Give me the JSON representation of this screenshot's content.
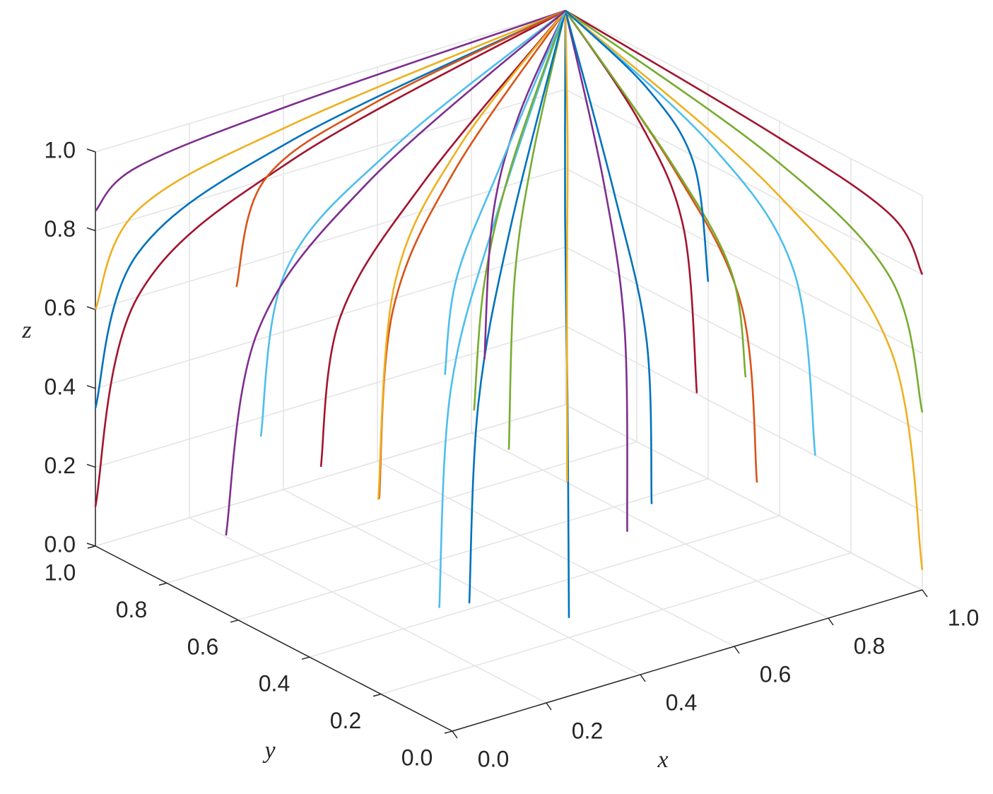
{
  "chart_data": {
    "type": "line3d",
    "xlabel": "x",
    "ylabel": "y",
    "zlabel": "z",
    "xlim": [
      0,
      1
    ],
    "ylim": [
      0,
      1
    ],
    "zlim": [
      0,
      1
    ],
    "xticks": [
      {
        "value": 0,
        "label": "0.0"
      },
      0.2,
      0.4,
      0.6,
      0.8,
      {
        "value": 1,
        "label": "1.0"
      }
    ],
    "yticks": [
      {
        "value": 0,
        "label": "0.0"
      },
      0.2,
      0.4,
      0.6,
      0.8,
      {
        "value": 1,
        "label": "1.0"
      }
    ],
    "zticks": [
      {
        "value": 0,
        "label": "0.0"
      },
      0.2,
      0.4,
      0.6,
      0.8,
      {
        "value": 1,
        "label": "1.0"
      }
    ],
    "grid": true,
    "series": [
      {
        "color": "#7E2F8E",
        "x": [
          0,
          0.09,
          0.42,
          1
        ],
        "y": [
          1,
          1,
          1,
          1
        ],
        "z": [
          0.85,
          0.93,
          0.97,
          1
        ]
      },
      {
        "color": "#EDB120",
        "x": [
          0,
          0.09,
          0.42,
          1
        ],
        "y": [
          1,
          1,
          1,
          1
        ],
        "z": [
          0.6,
          0.82,
          0.92,
          1
        ]
      },
      {
        "color": "#0072BD",
        "x": [
          0,
          0.09,
          0.42,
          1
        ],
        "y": [
          1,
          1,
          1,
          1
        ],
        "z": [
          0.35,
          0.71,
          0.88,
          1
        ]
      },
      {
        "color": "#A2142F",
        "x": [
          0,
          0.09,
          0.42,
          1
        ],
        "y": [
          1,
          1,
          1,
          1
        ],
        "z": [
          0.1,
          0.6,
          0.83,
          1
        ]
      },
      {
        "color": "#A2142F",
        "x": [
          1,
          1,
          1,
          1
        ],
        "y": [
          0,
          0.09,
          0.42,
          1
        ],
        "z": [
          0.8,
          0.91,
          0.96,
          1
        ]
      },
      {
        "color": "#77AC30",
        "x": [
          1,
          1,
          1,
          1
        ],
        "y": [
          0,
          0.09,
          0.42,
          1
        ],
        "z": [
          0.45,
          0.75,
          0.9,
          1
        ]
      },
      {
        "color": "#EDB120",
        "x": [
          1,
          1,
          1,
          1
        ],
        "y": [
          0,
          0.09,
          0.42,
          1
        ],
        "z": [
          0.05,
          0.57,
          0.82,
          1
        ]
      },
      {
        "color": "#4DBEEE",
        "x": [
          1,
          1,
          1,
          1
        ],
        "y": [
          0.3,
          0.36,
          0.59,
          1
        ],
        "z": [
          0.2,
          0.64,
          0.85,
          1
        ]
      },
      {
        "color": "#D95319",
        "x": [
          0.3,
          0.36,
          0.59,
          1
        ],
        "y": [
          1,
          1,
          1,
          1
        ],
        "z": [
          0.55,
          0.8,
          0.91,
          1
        ]
      },
      {
        "color": "#4DBEEE",
        "x": [
          0.2,
          0.27,
          0.54,
          1
        ],
        "y": [
          0.3,
          0.36,
          0.59,
          1
        ],
        "z": [
          0.1,
          0.6,
          0.83,
          1
        ]
      },
      {
        "color": "#0072BD",
        "x": [
          0.4,
          0.45,
          0.65,
          1
        ],
        "y": [
          0.2,
          0.27,
          0.54,
          1
        ],
        "z": [
          0.05,
          0.57,
          0.82,
          1
        ]
      },
      {
        "color": "#77AC30",
        "x": [
          0.5,
          0.55,
          0.71,
          1
        ],
        "y": [
          0.5,
          0.55,
          0.71,
          1
        ],
        "z": [
          0.3,
          0.69,
          0.87,
          1
        ]
      },
      {
        "color": "#D95319",
        "x": [
          0.3,
          0.36,
          0.59,
          1
        ],
        "y": [
          0.6,
          0.64,
          0.77,
          1
        ],
        "z": [
          0.2,
          0.64,
          0.85,
          1
        ]
      },
      {
        "color": "#7E2F8E",
        "x": [
          0.6,
          0.64,
          0.77,
          1
        ],
        "y": [
          0.3,
          0.36,
          0.59,
          1
        ],
        "z": [
          0.15,
          0.62,
          0.84,
          1
        ]
      },
      {
        "color": "#A2142F",
        "x": [
          0.1,
          0.18,
          0.48,
          1
        ],
        "y": [
          0.5,
          0.55,
          0.71,
          1
        ],
        "z": [
          0.4,
          0.73,
          0.89,
          1
        ]
      },
      {
        "color": "#EDB120",
        "x": [
          0.7,
          0.73,
          0.83,
          1
        ],
        "y": [
          0.6,
          0.64,
          0.77,
          1
        ],
        "z": [
          0.1,
          0.6,
          0.83,
          1
        ]
      },
      {
        "color": "#4DBEEE",
        "x": [
          0.2,
          0.27,
          0.54,
          1
        ],
        "y": [
          0.8,
          0.82,
          0.88,
          1
        ],
        "z": [
          0.3,
          0.69,
          0.87,
          1
        ]
      },
      {
        "color": "#0072BD",
        "x": [
          0.5,
          0.55,
          0.71,
          1
        ],
        "y": [
          0.1,
          0.18,
          0.48,
          1
        ],
        "z": [
          0.35,
          0.71,
          0.88,
          1
        ]
      },
      {
        "color": "#D95319",
        "x": [
          0.8,
          0.82,
          0.88,
          1
        ],
        "y": [
          0.2,
          0.27,
          0.54,
          1
        ],
        "z": [
          0.25,
          0.66,
          0.86,
          1
        ]
      },
      {
        "color": "#77AC30",
        "x": [
          0.35,
          0.41,
          0.62,
          1
        ],
        "y": [
          0.4,
          0.45,
          0.65,
          1
        ],
        "z": [
          0.5,
          0.78,
          0.91,
          1
        ]
      },
      {
        "color": "#0072BD",
        "x": [
          0.15,
          0.23,
          0.51,
          1
        ],
        "y": [
          0.15,
          0.23,
          0.51,
          1
        ],
        "z": [
          0.2,
          0.64,
          0.85,
          1
        ]
      },
      {
        "color": "#7E2F8E",
        "x": [
          0.6,
          0.64,
          0.77,
          1
        ],
        "y": [
          0.7,
          0.73,
          0.83,
          1
        ],
        "z": [
          0.4,
          0.73,
          0.89,
          1
        ]
      },
      {
        "color": "#EDB120",
        "x": [
          0.45,
          0.5,
          0.68,
          1
        ],
        "y": [
          0.8,
          0.82,
          0.88,
          1
        ],
        "z": [
          0.05,
          0.57,
          0.82,
          1
        ]
      },
      {
        "color": "#A2142F",
        "x": [
          0.9,
          0.91,
          0.94,
          1
        ],
        "y": [
          0.5,
          0.55,
          0.71,
          1
        ],
        "z": [
          0.3,
          0.69,
          0.87,
          1
        ]
      },
      {
        "color": "#4DBEEE",
        "x": [
          0.25,
          0.32,
          0.57,
          1
        ],
        "y": [
          0.35,
          0.41,
          0.62,
          1
        ],
        "z": [
          0.65,
          0.84,
          0.93,
          1
        ]
      },
      {
        "color": "#77AC30",
        "x": [
          0.7,
          0.73,
          0.83,
          1
        ],
        "y": [
          0.1,
          0.18,
          0.48,
          1
        ],
        "z": [
          0.6,
          0.82,
          0.92,
          1
        ]
      },
      {
        "color": "#0072BD",
        "x": [
          1,
          1,
          1,
          1
        ],
        "y": [
          0.6,
          0.64,
          0.77,
          1
        ],
        "z": [
          0.5,
          0.78,
          0.91,
          1
        ]
      },
      {
        "color": "#7E2F8E",
        "x": [
          0.05,
          0.14,
          0.45,
          1
        ],
        "y": [
          0.7,
          0.73,
          0.83,
          1
        ],
        "z": [
          0.15,
          0.62,
          0.84,
          1
        ]
      }
    ]
  }
}
